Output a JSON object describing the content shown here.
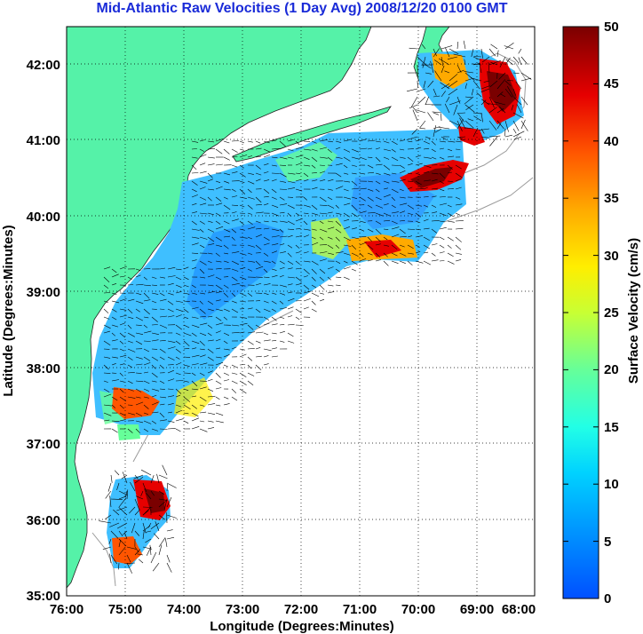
{
  "title": "Mid-Atlantic Raw Velocities (1 Day Avg) 2008/12/20 0100 GMT",
  "x_axis": {
    "label": "Longitude (Degrees:Minutes)",
    "ticks": [
      "76:00",
      "75:00",
      "74:00",
      "73:00",
      "72:00",
      "71:00",
      "70:00",
      "69:00",
      "68:00"
    ],
    "range": [
      -76,
      -68
    ]
  },
  "y_axis": {
    "label": "Latitude (Degrees:Minutes)",
    "ticks": [
      "42:00",
      "41:00",
      "40:00",
      "39:00",
      "38:00",
      "37:00",
      "36:00",
      "35:00"
    ],
    "range": [
      35,
      42.5
    ]
  },
  "colorbar": {
    "label": "Surface Velocity (cm/s)",
    "ticks": [
      "50",
      "45",
      "40",
      "35",
      "30",
      "25",
      "20",
      "15",
      "10",
      "5",
      "0"
    ],
    "range": [
      0,
      50
    ],
    "colormap": "jet"
  },
  "colors": {
    "land": "#55f2a8",
    "title": "#1a2bd8",
    "bathymetry": "#9a9a9a"
  },
  "grid": true
}
